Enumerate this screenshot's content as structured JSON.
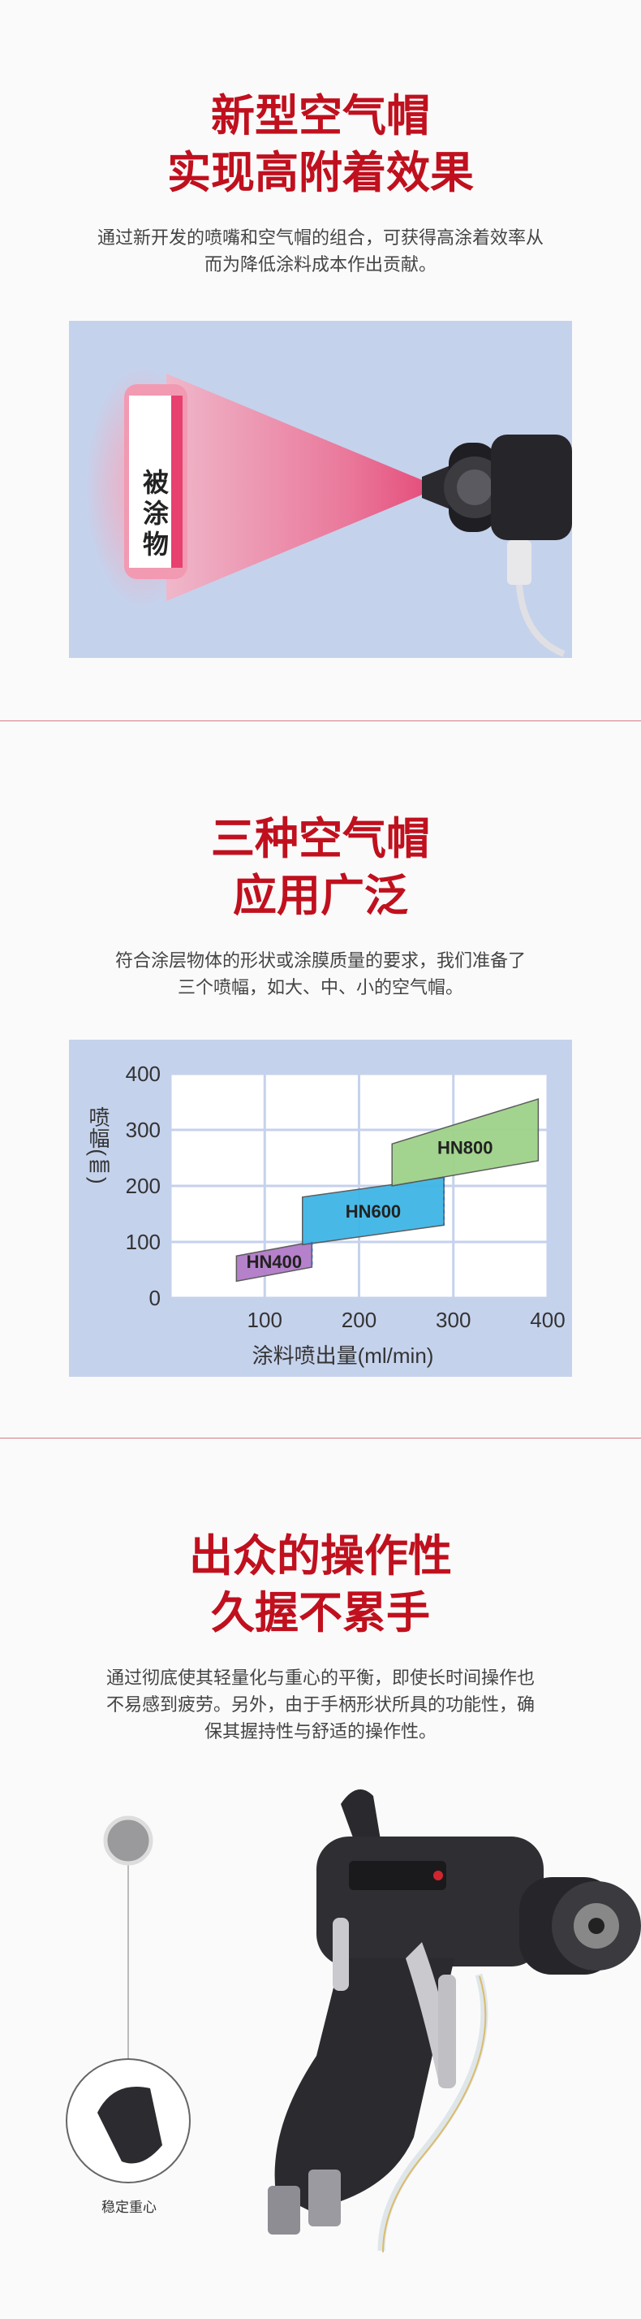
{
  "section1": {
    "title_line1": "新型空气帽",
    "title_line2": "实现高附着效果",
    "desc_line1": "通过新开发的喷嘴和空气帽的组合，可获得高涂着效率从",
    "desc_line2": "而为降低涂料成本作出贡献。",
    "target_label": "被涂物"
  },
  "section2": {
    "title_line1": "三种空气帽",
    "title_line2": "应用广泛",
    "desc_line1": "符合涂层物体的形状或涂膜质量的要求，我们准备了",
    "desc_line2": "三个喷幅，如大、中、小的空气帽。"
  },
  "chart_data": {
    "type": "area",
    "ylabel": "喷幅(㎜)",
    "xlabel": "涂料喷出量(ml/min)",
    "xlim": [
      0,
      400
    ],
    "ylim": [
      0,
      400
    ],
    "x_ticks": [
      "100",
      "200",
      "300",
      "400"
    ],
    "y_ticks": [
      "0",
      "100",
      "200",
      "300",
      "400"
    ],
    "grid": true,
    "series": [
      {
        "name": "HN400",
        "color": "#b27bc8",
        "polygon": [
          [
            70,
            30
          ],
          [
            70,
            75
          ],
          [
            150,
            100
          ],
          [
            150,
            55
          ]
        ]
      },
      {
        "name": "HN600",
        "color": "#3fb6e6",
        "polygon": [
          [
            140,
            95
          ],
          [
            140,
            180
          ],
          [
            290,
            215
          ],
          [
            290,
            130
          ]
        ]
      },
      {
        "name": "HN800",
        "color": "#9fd28a",
        "polygon": [
          [
            235,
            200
          ],
          [
            235,
            275
          ],
          [
            390,
            355
          ],
          [
            390,
            245
          ]
        ]
      }
    ]
  },
  "section3": {
    "title_line1": "出众的操作性",
    "title_line2": "久握不累手",
    "desc_line1": "通过彻底使其轻量化与重心的平衡，即使长时间操作也",
    "desc_line2": "不易感到疲劳。另外，由于手柄形状所具的功能性，确",
    "desc_line3": "保其握持性与舒适的操作性。",
    "caption": "稳定重心"
  }
}
